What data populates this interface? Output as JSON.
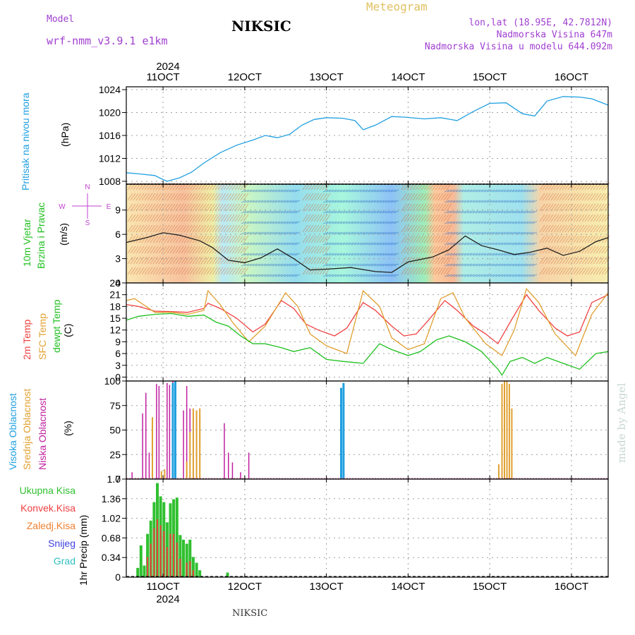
{
  "header": {
    "model_label": "Model",
    "model_name": "wrf-nmm_v3.9.1 e1km",
    "station": "NIKSIC",
    "product": "Meteogram",
    "coords": "lon,lat (18.95E, 42.7812N)",
    "altitude": "Nadmorska Visina 647m",
    "model_altitude": "Nadmorska Visina u modelu 644.092m",
    "footer_station": "NIKSIC",
    "watermark": "made by Angel"
  },
  "colors": {
    "pressure": "#20a0e0",
    "temp2m": "#f04040",
    "sfc_temp": "#e0a030",
    "dewpt": "#20c020",
    "high_cloud": "#20a0e0",
    "mid_cloud": "#e0a030",
    "low_cloud": "#c020a0",
    "total_precip": "#30c030",
    "conv_precip": "#f04040",
    "ice_precip": "#f08030",
    "snow": "#4040e0",
    "hail": "#30c0c0",
    "wind_label": "#20c020",
    "compass": "#c040d0"
  },
  "x_axis": {
    "year": "2024",
    "ticks": [
      "11OCT",
      "12OCT",
      "13OCT",
      "14OCT",
      "15OCT",
      "16OCT"
    ],
    "start_day": 10.55,
    "end_day": 16.45
  },
  "chart_data": [
    {
      "type": "line",
      "name": "pressure",
      "ylabel_lines": [
        "Pritisak na nivou mora",
        "(hPa)"
      ],
      "ylim": [
        1007.5,
        1024.5
      ],
      "yticks": [
        "1008",
        "1012",
        "1016",
        "1020",
        "1024"
      ],
      "ytick_values": [
        1008,
        1012,
        1016,
        1020,
        1024
      ],
      "grid": true,
      "series": [
        {
          "x": [
            10.55,
            10.7,
            10.9,
            11.0,
            11.05,
            11.2,
            11.35,
            11.5,
            11.7,
            11.9,
            12.1,
            12.25,
            12.4,
            12.55,
            12.7,
            12.85,
            13.0,
            13.2,
            13.35,
            13.45,
            13.6,
            13.8,
            13.95,
            14.2,
            14.4,
            14.6,
            14.8,
            15.0,
            15.2,
            15.4,
            15.55,
            15.7,
            15.9,
            16.1,
            16.25,
            16.45
          ],
          "y": [
            1009.5,
            1009.3,
            1009.0,
            1008.3,
            1008.0,
            1008.6,
            1009.6,
            1011.2,
            1013.0,
            1014.3,
            1015.2,
            1016.0,
            1015.6,
            1016.2,
            1017.8,
            1018.8,
            1019.1,
            1019.0,
            1018.6,
            1017.0,
            1017.8,
            1019.3,
            1019.2,
            1018.9,
            1019.1,
            1018.6,
            1020.2,
            1021.6,
            1021.7,
            1019.8,
            1019.4,
            1022.0,
            1022.8,
            1022.7,
            1022.4,
            1021.3
          ]
        }
      ]
    },
    {
      "type": "line",
      "name": "wind",
      "ylabel_lines": [
        "10m Vjetar",
        "Brzina i Pravac",
        "(m/s)"
      ],
      "compass_labels": {
        "north": "N",
        "south": "S",
        "west": "W",
        "east": "E"
      },
      "ylim": [
        0,
        12.2
      ],
      "yticks": [
        "0",
        "3",
        "6",
        "9"
      ],
      "ytick_values": [
        0,
        3,
        6,
        9
      ],
      "grid": true,
      "series": [
        {
          "name": "speed",
          "x": [
            10.55,
            10.8,
            11.0,
            11.2,
            11.45,
            11.6,
            11.8,
            12.0,
            12.2,
            12.4,
            12.6,
            12.8,
            13.0,
            13.3,
            13.6,
            13.8,
            14.0,
            14.3,
            14.5,
            14.7,
            14.9,
            15.1,
            15.3,
            15.5,
            15.7,
            15.9,
            16.1,
            16.3,
            16.45
          ],
          "y": [
            5.0,
            5.6,
            6.2,
            5.9,
            5.2,
            4.4,
            2.8,
            2.5,
            3.1,
            4.2,
            3.0,
            1.6,
            1.7,
            1.9,
            1.4,
            1.3,
            2.6,
            3.2,
            4.1,
            5.8,
            4.6,
            4.1,
            3.5,
            3.8,
            4.3,
            3.4,
            3.9,
            5.1,
            5.6
          ]
        }
      ]
    },
    {
      "type": "line",
      "name": "temperature",
      "ylabel_lines": [
        "2m Temp",
        "SFC Temp",
        "dewpt Temp",
        "(C)"
      ],
      "ylim": [
        -1,
        24
      ],
      "yticks": [
        "0",
        "3",
        "6",
        "9",
        "12",
        "15",
        "18",
        "21",
        "24"
      ],
      "ytick_values": [
        0,
        3,
        6,
        9,
        12,
        15,
        18,
        21,
        24
      ],
      "grid": true,
      "series": [
        {
          "name": "2m Temp",
          "x": [
            10.55,
            10.7,
            10.9,
            11.1,
            11.3,
            11.5,
            11.55,
            11.7,
            11.9,
            12.1,
            12.25,
            12.45,
            12.6,
            12.75,
            12.9,
            13.1,
            13.25,
            13.45,
            13.6,
            13.8,
            13.95,
            14.1,
            14.25,
            14.45,
            14.6,
            14.8,
            14.95,
            15.1,
            15.25,
            15.45,
            15.6,
            15.8,
            15.95,
            16.1,
            16.25,
            16.45
          ],
          "y": [
            18.5,
            18.0,
            16.8,
            16.7,
            16.5,
            17.5,
            18.8,
            17.5,
            15.0,
            11.5,
            13.5,
            19.5,
            17.5,
            13.5,
            12.0,
            10.5,
            12.5,
            19.0,
            17.0,
            13.0,
            10.5,
            11.0,
            14.5,
            19.5,
            17.0,
            13.0,
            11.0,
            8.5,
            14.0,
            21.0,
            17.0,
            12.5,
            10.5,
            11.5,
            19.0,
            21.0
          ]
        },
        {
          "name": "SFC Temp",
          "x": [
            10.55,
            10.65,
            10.9,
            11.1,
            11.3,
            11.5,
            11.55,
            11.7,
            11.85,
            12.05,
            12.25,
            12.5,
            12.65,
            12.8,
            13.0,
            13.25,
            13.45,
            13.65,
            13.8,
            14.0,
            14.2,
            14.4,
            14.55,
            14.7,
            14.95,
            15.15,
            15.3,
            15.45,
            15.6,
            15.8,
            16.05,
            16.25,
            16.45
          ],
          "y": [
            19.5,
            20.0,
            16.5,
            16.5,
            16.0,
            17.0,
            22.0,
            18.5,
            14.0,
            9.0,
            13.0,
            21.5,
            18.0,
            11.0,
            8.0,
            6.0,
            22.0,
            18.0,
            10.0,
            7.0,
            8.5,
            20.0,
            21.5,
            15.0,
            8.5,
            5.5,
            12.0,
            22.5,
            19.0,
            11.0,
            5.5,
            16.0,
            21.5
          ]
        },
        {
          "name": "dewpt Temp",
          "x": [
            10.55,
            10.7,
            10.9,
            11.1,
            11.3,
            11.5,
            11.65,
            11.8,
            11.95,
            12.1,
            12.25,
            12.45,
            12.6,
            12.8,
            13.0,
            13.2,
            13.45,
            13.65,
            13.8,
            14.0,
            14.15,
            14.35,
            14.5,
            14.7,
            14.9,
            15.1,
            15.15,
            15.25,
            15.4,
            15.55,
            15.7,
            15.9,
            16.1,
            16.3,
            16.45
          ],
          "y": [
            14.5,
            15.5,
            16.0,
            16.2,
            15.5,
            15.8,
            14.0,
            13.0,
            10.5,
            8.5,
            8.5,
            7.5,
            6.5,
            7.5,
            4.5,
            4.0,
            3.5,
            8.5,
            7.0,
            5.5,
            6.5,
            9.5,
            10.5,
            9.0,
            6.5,
            2.0,
            0.5,
            4.0,
            5.0,
            3.5,
            5.0,
            3.5,
            2.0,
            6.0,
            6.5
          ]
        }
      ]
    },
    {
      "type": "bar",
      "name": "cloud",
      "ylabel_lines": [
        "Visoka Oblacnost",
        "Srednja Oblacnost",
        "Niska Oblacnost",
        "(%)"
      ],
      "ylim": [
        0,
        100
      ],
      "yticks": [
        "0",
        "25",
        "50",
        "75",
        "100"
      ],
      "ytick_values": [
        0,
        25,
        50,
        75,
        100
      ],
      "grid": true,
      "series": [
        {
          "name": "Niska Oblacnost",
          "x": [
            10.62,
            10.75,
            10.79,
            10.83,
            10.92,
            10.95,
            11.05,
            11.08,
            11.12,
            11.25,
            11.29,
            11.33,
            11.37,
            11.41,
            11.45,
            11.75,
            11.8,
            11.85,
            11.95,
            12.05
          ],
          "values": [
            7,
            67,
            88,
            27,
            97,
            95,
            98,
            96,
            100,
            70,
            95,
            72,
            68,
            70,
            72,
            57,
            27,
            17,
            7,
            27
          ]
        },
        {
          "name": "Srednja Oblacnost",
          "x": [
            10.87,
            10.98,
            11.02,
            11.29,
            11.33,
            11.37,
            11.41,
            11.45,
            15.11,
            15.15,
            15.18,
            15.21,
            15.24,
            15.27
          ],
          "values": [
            63,
            8,
            10,
            18,
            48,
            72,
            70,
            72,
            15,
            97,
            100,
            100,
            97,
            72
          ]
        },
        {
          "name": "Visoka Oblacnost",
          "x": [
            11.12,
            11.15,
            13.18,
            13.21
          ],
          "values": [
            98,
            100,
            93,
            98
          ]
        }
      ]
    },
    {
      "type": "bar",
      "name": "precipitation",
      "ylabel_lines": [
        "1hr Precip (mm)"
      ],
      "legend": [
        "Ukupna Kisa",
        "Konvek.Kisa",
        "Zaledj.Kisa",
        "Snijeg",
        "Grad"
      ],
      "ylim": [
        0,
        1.7
      ],
      "yticks": [
        "0",
        "0.34",
        "0.68",
        "1.02",
        "1.36",
        "1.7"
      ],
      "ytick_values": [
        0,
        0.34,
        0.68,
        1.02,
        1.36,
        1.7
      ],
      "grid": true,
      "series": [
        {
          "name": "Ukupna Kisa",
          "x": [
            10.69,
            10.73,
            10.77,
            10.81,
            10.85,
            10.89,
            10.93,
            10.97,
            11.01,
            11.05,
            11.09,
            11.13,
            11.17,
            11.21,
            11.25,
            11.29,
            11.33,
            11.37,
            11.41,
            11.45,
            11.79
          ],
          "values": [
            0.16,
            0.55,
            0.2,
            0.75,
            0.98,
            1.3,
            1.63,
            1.4,
            1.3,
            0.95,
            1.28,
            1.35,
            1.38,
            0.73,
            0.65,
            0.58,
            0.65,
            0.35,
            0.25,
            0.12,
            0.08
          ]
        },
        {
          "name": "Konvek.Kisa",
          "x": [
            10.81,
            10.85,
            10.89,
            10.93,
            10.97,
            11.01,
            11.05,
            11.09,
            11.13,
            11.17,
            11.21,
            11.29,
            11.33,
            11.37
          ],
          "values": [
            0.35,
            0.58,
            0.85,
            1.0,
            0.9,
            0.8,
            0.52,
            0.75,
            0.75,
            0.6,
            0.32,
            0.25,
            0.28,
            0.12
          ]
        }
      ]
    }
  ]
}
